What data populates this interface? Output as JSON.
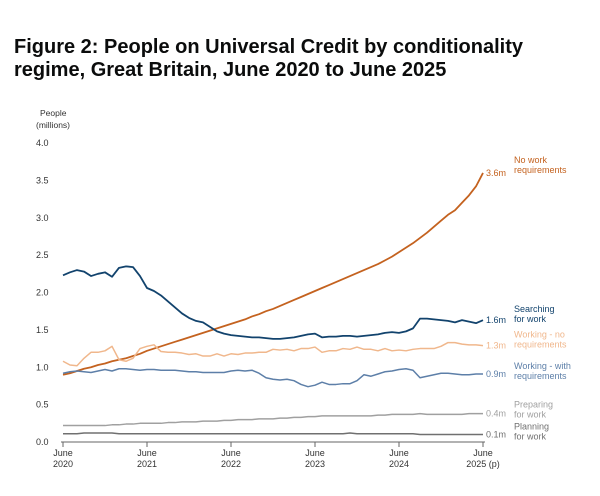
{
  "chart_data": {
    "type": "line",
    "title": "Figure 2: People on Universal Credit by conditionality regime, Great Britain, June 2020 to June 2025",
    "ylabel": [
      "People",
      "(millions)"
    ],
    "ylim": [
      0,
      4.0
    ],
    "yticks": [
      "0.0",
      "0.5",
      "1.0",
      "1.5",
      "2.0",
      "2.5",
      "3.0",
      "3.5",
      "4.0"
    ],
    "xticks": [
      [
        "June",
        "2020"
      ],
      [
        "June",
        "2021"
      ],
      [
        "June",
        "2022"
      ],
      [
        "June",
        "2023"
      ],
      [
        "June",
        "2024"
      ],
      [
        "June",
        "2025 (p)"
      ]
    ],
    "months": 61,
    "grid": false,
    "series": [
      {
        "name": [
          "No work",
          "requirements"
        ],
        "end_label": "3.6m",
        "color": "#c4621f",
        "values": [
          0.9,
          0.92,
          0.95,
          0.98,
          1.0,
          1.03,
          1.05,
          1.08,
          1.1,
          1.12,
          1.15,
          1.18,
          1.22,
          1.25,
          1.28,
          1.31,
          1.34,
          1.37,
          1.4,
          1.43,
          1.46,
          1.49,
          1.52,
          1.55,
          1.58,
          1.61,
          1.64,
          1.68,
          1.71,
          1.75,
          1.78,
          1.82,
          1.86,
          1.9,
          1.94,
          1.98,
          2.02,
          2.06,
          2.1,
          2.14,
          2.18,
          2.22,
          2.26,
          2.3,
          2.34,
          2.38,
          2.43,
          2.48,
          2.54,
          2.6,
          2.66,
          2.73,
          2.8,
          2.88,
          2.96,
          3.04,
          3.1,
          3.2,
          3.3,
          3.42,
          3.6
        ]
      },
      {
        "name": [
          "Searching",
          "for work"
        ],
        "end_label": "1.6m",
        "color": "#12436d",
        "values": [
          2.23,
          2.27,
          2.3,
          2.28,
          2.22,
          2.25,
          2.27,
          2.21,
          2.33,
          2.35,
          2.34,
          2.22,
          2.06,
          2.02,
          1.96,
          1.88,
          1.8,
          1.72,
          1.66,
          1.62,
          1.6,
          1.54,
          1.48,
          1.45,
          1.43,
          1.42,
          1.41,
          1.4,
          1.4,
          1.39,
          1.38,
          1.38,
          1.39,
          1.4,
          1.42,
          1.44,
          1.45,
          1.4,
          1.41,
          1.41,
          1.42,
          1.42,
          1.41,
          1.42,
          1.43,
          1.44,
          1.46,
          1.47,
          1.46,
          1.48,
          1.52,
          1.65,
          1.65,
          1.64,
          1.63,
          1.62,
          1.6,
          1.63,
          1.61,
          1.59,
          1.63
        ]
      },
      {
        "name": [
          "Working - no",
          "requirements"
        ],
        "end_label": "1.3m",
        "color": "#f0b78c",
        "values": [
          1.08,
          1.03,
          1.02,
          1.12,
          1.2,
          1.2,
          1.22,
          1.28,
          1.1,
          1.08,
          1.12,
          1.25,
          1.28,
          1.3,
          1.21,
          1.2,
          1.2,
          1.19,
          1.17,
          1.18,
          1.15,
          1.15,
          1.18,
          1.15,
          1.18,
          1.17,
          1.19,
          1.19,
          1.2,
          1.2,
          1.24,
          1.23,
          1.24,
          1.22,
          1.25,
          1.25,
          1.27,
          1.2,
          1.22,
          1.22,
          1.25,
          1.24,
          1.27,
          1.24,
          1.24,
          1.22,
          1.25,
          1.22,
          1.23,
          1.22,
          1.24,
          1.25,
          1.25,
          1.25,
          1.28,
          1.33,
          1.33,
          1.31,
          1.3,
          1.3,
          1.29
        ]
      },
      {
        "name": [
          "Working - with",
          "requirements"
        ],
        "end_label": "0.9m",
        "color": "#5d7fa8",
        "values": [
          0.92,
          0.94,
          0.95,
          0.94,
          0.93,
          0.95,
          0.97,
          0.95,
          0.98,
          0.98,
          0.97,
          0.96,
          0.97,
          0.97,
          0.96,
          0.96,
          0.96,
          0.95,
          0.94,
          0.94,
          0.93,
          0.93,
          0.93,
          0.93,
          0.95,
          0.96,
          0.95,
          0.96,
          0.92,
          0.86,
          0.84,
          0.83,
          0.84,
          0.82,
          0.77,
          0.74,
          0.76,
          0.8,
          0.77,
          0.77,
          0.78,
          0.78,
          0.82,
          0.9,
          0.88,
          0.91,
          0.94,
          0.95,
          0.97,
          0.98,
          0.96,
          0.86,
          0.88,
          0.9,
          0.92,
          0.92,
          0.91,
          0.9,
          0.9,
          0.91,
          0.91
        ]
      },
      {
        "name": [
          "Preparing",
          "for work"
        ],
        "end_label": "0.4m",
        "color": "#a0a0a0",
        "values": [
          0.22,
          0.22,
          0.22,
          0.22,
          0.22,
          0.22,
          0.22,
          0.23,
          0.23,
          0.24,
          0.24,
          0.25,
          0.25,
          0.25,
          0.25,
          0.26,
          0.26,
          0.27,
          0.27,
          0.27,
          0.28,
          0.28,
          0.28,
          0.29,
          0.29,
          0.3,
          0.3,
          0.3,
          0.31,
          0.31,
          0.31,
          0.32,
          0.32,
          0.33,
          0.33,
          0.34,
          0.34,
          0.35,
          0.35,
          0.35,
          0.35,
          0.35,
          0.35,
          0.35,
          0.35,
          0.36,
          0.36,
          0.37,
          0.37,
          0.37,
          0.37,
          0.38,
          0.37,
          0.37,
          0.37,
          0.37,
          0.37,
          0.37,
          0.38,
          0.38,
          0.38
        ]
      },
      {
        "name": [
          "Planning",
          "for work"
        ],
        "end_label": "0.1m",
        "color": "#707070",
        "values": [
          0.11,
          0.11,
          0.11,
          0.12,
          0.12,
          0.12,
          0.12,
          0.12,
          0.11,
          0.11,
          0.11,
          0.11,
          0.11,
          0.11,
          0.11,
          0.11,
          0.11,
          0.11,
          0.11,
          0.11,
          0.11,
          0.11,
          0.11,
          0.11,
          0.11,
          0.11,
          0.11,
          0.11,
          0.11,
          0.11,
          0.11,
          0.11,
          0.11,
          0.11,
          0.11,
          0.11,
          0.11,
          0.11,
          0.11,
          0.11,
          0.11,
          0.12,
          0.11,
          0.11,
          0.11,
          0.11,
          0.11,
          0.11,
          0.11,
          0.11,
          0.11,
          0.1,
          0.1,
          0.1,
          0.1,
          0.1,
          0.1,
          0.1,
          0.1,
          0.1,
          0.1
        ]
      }
    ]
  }
}
